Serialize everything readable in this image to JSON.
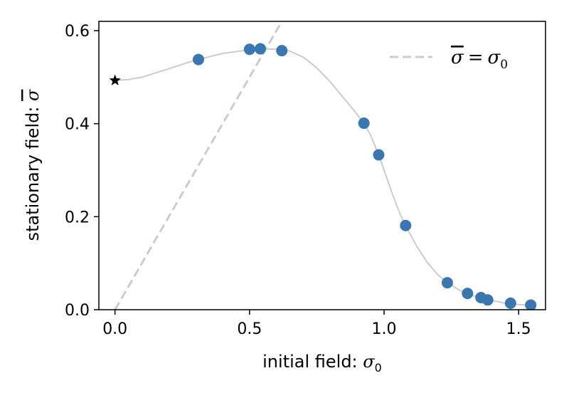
{
  "chart_data": {
    "type": "scatter",
    "xlabel": "initial field: σ₀",
    "ylabel": "stationary field: σ̄",
    "xlim": [
      -0.06,
      1.6
    ],
    "ylim": [
      0.0,
      0.62
    ],
    "xticks": [
      "0.0",
      "0.5",
      "1.0",
      "1.5"
    ],
    "xtick_values": [
      0.0,
      0.5,
      1.0,
      1.5
    ],
    "yticks": [
      "0.0",
      "0.2",
      "0.4",
      "0.6"
    ],
    "ytick_values": [
      0.0,
      0.2,
      0.4,
      0.6
    ],
    "grid": false,
    "legend_position": "top-right",
    "legend_entries": [
      "σ̄ = σ₀"
    ],
    "colors": {
      "points": "#3a76af",
      "curve": "#cccccc",
      "identity_line": "#cccccc",
      "star": "#000000"
    },
    "star_point": {
      "x": 0.0,
      "y": 0.493
    },
    "points": [
      {
        "x": 0.31,
        "y": 0.538
      },
      {
        "x": 0.5,
        "y": 0.56
      },
      {
        "x": 0.54,
        "y": 0.561
      },
      {
        "x": 0.62,
        "y": 0.557
      },
      {
        "x": 0.925,
        "y": 0.401
      },
      {
        "x": 0.98,
        "y": 0.333
      },
      {
        "x": 1.08,
        "y": 0.181
      },
      {
        "x": 1.235,
        "y": 0.058
      },
      {
        "x": 1.31,
        "y": 0.035
      },
      {
        "x": 1.36,
        "y": 0.026
      },
      {
        "x": 1.385,
        "y": 0.021
      },
      {
        "x": 1.47,
        "y": 0.014
      },
      {
        "x": 1.545,
        "y": 0.01
      }
    ],
    "curve": [
      {
        "x": 0.0,
        "y": 0.493
      },
      {
        "x": 0.05,
        "y": 0.495
      },
      {
        "x": 0.1,
        "y": 0.5
      },
      {
        "x": 0.2,
        "y": 0.518
      },
      {
        "x": 0.3,
        "y": 0.537
      },
      {
        "x": 0.4,
        "y": 0.551
      },
      {
        "x": 0.5,
        "y": 0.559
      },
      {
        "x": 0.55,
        "y": 0.561
      },
      {
        "x": 0.6,
        "y": 0.56
      },
      {
        "x": 0.65,
        "y": 0.556
      },
      {
        "x": 0.7,
        "y": 0.543
      },
      {
        "x": 0.75,
        "y": 0.52
      },
      {
        "x": 0.8,
        "y": 0.49
      },
      {
        "x": 0.85,
        "y": 0.455
      },
      {
        "x": 0.9,
        "y": 0.42
      },
      {
        "x": 0.925,
        "y": 0.401
      },
      {
        "x": 0.95,
        "y": 0.375
      },
      {
        "x": 0.98,
        "y": 0.333
      },
      {
        "x": 1.0,
        "y": 0.3
      },
      {
        "x": 1.03,
        "y": 0.25
      },
      {
        "x": 1.06,
        "y": 0.205
      },
      {
        "x": 1.08,
        "y": 0.181
      },
      {
        "x": 1.12,
        "y": 0.138
      },
      {
        "x": 1.16,
        "y": 0.102
      },
      {
        "x": 1.2,
        "y": 0.075
      },
      {
        "x": 1.235,
        "y": 0.058
      },
      {
        "x": 1.28,
        "y": 0.042
      },
      {
        "x": 1.32,
        "y": 0.032
      },
      {
        "x": 1.36,
        "y": 0.025
      },
      {
        "x": 1.4,
        "y": 0.02
      },
      {
        "x": 1.45,
        "y": 0.014
      },
      {
        "x": 1.5,
        "y": 0.011
      },
      {
        "x": 1.55,
        "y": 0.009
      }
    ],
    "identity_line": [
      {
        "x": 0.0,
        "y": 0.0
      },
      {
        "x": 0.62,
        "y": 0.62
      }
    ]
  }
}
